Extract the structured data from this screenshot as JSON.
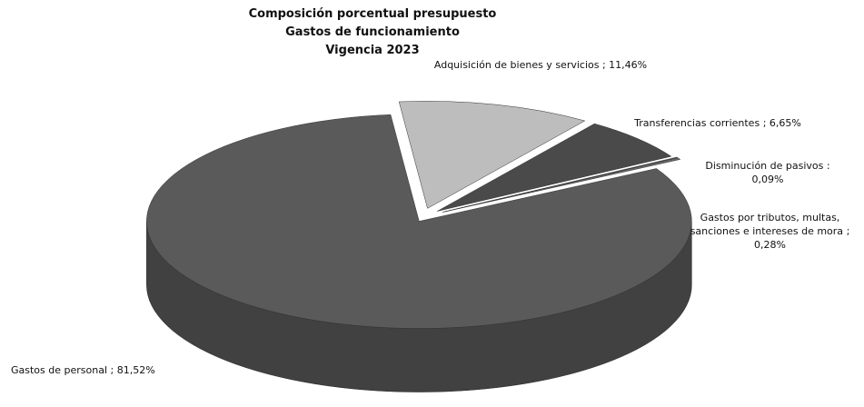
{
  "chart_data": {
    "type": "pie",
    "title": [
      "Composición porcentual presupuesto",
      "Gastos de funcionamiento",
      "Vigencia 2023"
    ],
    "categories": [
      "Adquisición de bienes y servicios",
      "Transferencias corrientes",
      "Disminución de pasivos",
      "Gastos por tributos, multas, sanciones e intereses de mora",
      "Gastos de personal"
    ],
    "values": [
      11.46,
      6.65,
      0.09,
      0.28,
      81.52
    ],
    "value_labels": [
      "; 11,46%",
      "; 6,65%",
      ": 0,09%",
      "; 0,28%",
      "; 81,52%"
    ],
    "colors": [
      "#bdbdbd",
      "#4a4a4a",
      "#7a7a7a",
      "#6a6a6a",
      "#5a5a5a"
    ]
  }
}
